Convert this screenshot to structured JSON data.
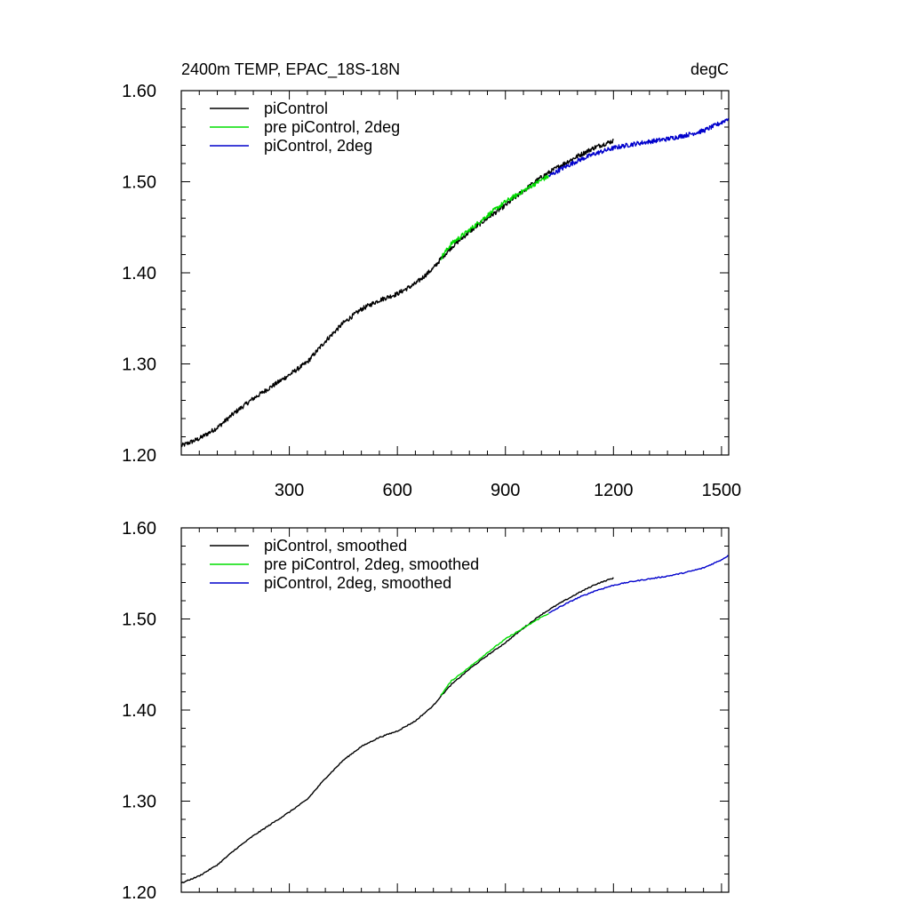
{
  "chart_data": [
    {
      "type": "line",
      "title": "2400m TEMP, EPAC_18S-18N",
      "units": "degC",
      "xlim": [
        0,
        1520
      ],
      "ylim": [
        1.2,
        1.6
      ],
      "xticks": [
        300,
        600,
        900,
        1200,
        1500
      ],
      "xtick_labels": [
        "300",
        "600",
        "900",
        "1200",
        "1500"
      ],
      "yticks": [
        1.2,
        1.3,
        1.4,
        1.5,
        1.6
      ],
      "ytick_labels": [
        "1.20",
        "1.30",
        "1.40",
        "1.50",
        "1.60"
      ],
      "legend_position": "top-left",
      "series": [
        {
          "name": "piControl",
          "color": "#000000",
          "noisy": true,
          "x": [
            0,
            50,
            100,
            150,
            200,
            250,
            300,
            350,
            400,
            450,
            500,
            550,
            600,
            650,
            700,
            720,
            750,
            800,
            850,
            900,
            950,
            1000,
            1050,
            1100,
            1150,
            1200
          ],
          "y": [
            1.21,
            1.218,
            1.23,
            1.247,
            1.262,
            1.275,
            1.288,
            1.302,
            1.325,
            1.345,
            1.36,
            1.37,
            1.377,
            1.388,
            1.405,
            1.415,
            1.428,
            1.445,
            1.46,
            1.474,
            1.49,
            1.505,
            1.517,
            1.528,
            1.538,
            1.545
          ]
        },
        {
          "name": "pre piControl, 2deg",
          "color": "#00dd00",
          "noisy": true,
          "x": [
            720,
            750,
            800,
            850,
            900,
            950,
            1000,
            1020
          ],
          "y": [
            1.416,
            1.432,
            1.447,
            1.463,
            1.478,
            1.49,
            1.502,
            1.506
          ]
        },
        {
          "name": "piControl, 2deg",
          "color": "#0000cc",
          "noisy": true,
          "x": [
            1020,
            1050,
            1100,
            1150,
            1200,
            1250,
            1300,
            1350,
            1400,
            1450,
            1500,
            1520
          ],
          "y": [
            1.506,
            1.513,
            1.523,
            1.531,
            1.537,
            1.541,
            1.544,
            1.547,
            1.551,
            1.556,
            1.565,
            1.57
          ]
        }
      ]
    },
    {
      "type": "line",
      "title": "",
      "units": "",
      "xlim": [
        0,
        1520
      ],
      "ylim": [
        1.2,
        1.6
      ],
      "xticks": [
        300,
        600,
        900,
        1200,
        1500
      ],
      "xtick_labels": [],
      "yticks": [
        1.2,
        1.3,
        1.4,
        1.5,
        1.6
      ],
      "ytick_labels": [
        "1.20",
        "1.30",
        "1.40",
        "1.50",
        "1.60"
      ],
      "legend_position": "top-left",
      "series": [
        {
          "name": "piControl, smoothed",
          "color": "#000000",
          "noisy": false,
          "x": [
            0,
            50,
            100,
            150,
            200,
            250,
            300,
            350,
            400,
            450,
            500,
            550,
            600,
            650,
            700,
            720,
            750,
            800,
            850,
            900,
            950,
            1000,
            1050,
            1100,
            1150,
            1200
          ],
          "y": [
            1.21,
            1.218,
            1.23,
            1.247,
            1.262,
            1.275,
            1.288,
            1.302,
            1.325,
            1.345,
            1.36,
            1.37,
            1.377,
            1.388,
            1.405,
            1.415,
            1.428,
            1.445,
            1.46,
            1.474,
            1.49,
            1.505,
            1.517,
            1.528,
            1.538,
            1.545
          ]
        },
        {
          "name": "pre piControl, 2deg, smoothed",
          "color": "#00dd00",
          "noisy": false,
          "x": [
            720,
            750,
            800,
            850,
            900,
            950,
            1000,
            1020
          ],
          "y": [
            1.416,
            1.432,
            1.447,
            1.463,
            1.478,
            1.49,
            1.502,
            1.506
          ]
        },
        {
          "name": "piControl, 2deg, smoothed",
          "color": "#0000cc",
          "noisy": false,
          "x": [
            1020,
            1050,
            1100,
            1150,
            1200,
            1250,
            1300,
            1350,
            1400,
            1450,
            1500,
            1520
          ],
          "y": [
            1.506,
            1.513,
            1.523,
            1.531,
            1.537,
            1.541,
            1.544,
            1.547,
            1.551,
            1.556,
            1.565,
            1.57
          ]
        }
      ]
    }
  ]
}
